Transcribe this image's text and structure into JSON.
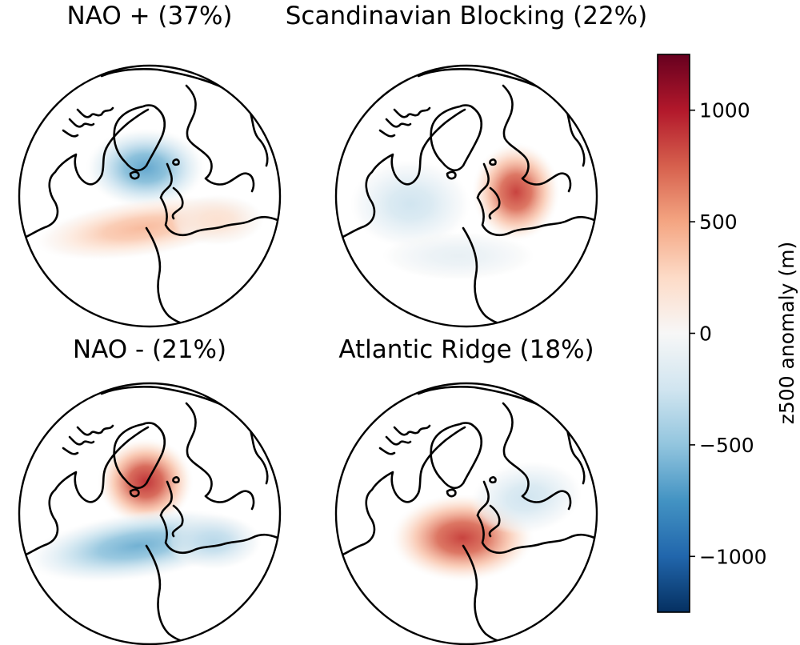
{
  "chart_data": {
    "type": "heatmap",
    "projection": "orthographic, North Atlantic / Arctic view",
    "variable": "z500 anomaly",
    "units": "m",
    "panels": [
      {
        "title": "NAO + (37%)",
        "regime": "NAO +",
        "frequency_pct": 37,
        "anomaly_centers": [
          {
            "region": "Greenland / Iceland",
            "sign": "negative",
            "approx_value": -650
          },
          {
            "region": "Central North Atlantic (Azores)",
            "sign": "positive",
            "approx_value": 400
          },
          {
            "region": "Western Europe",
            "sign": "positive",
            "approx_value": 200
          }
        ]
      },
      {
        "title": "Scandinavian Blocking (22%)",
        "regime": "Scandinavian Blocking",
        "frequency_pct": 22,
        "anomaly_centers": [
          {
            "region": "Scandinavia",
            "sign": "positive",
            "approx_value": 850
          },
          {
            "region": "Western North Atlantic",
            "sign": "negative",
            "approx_value": -250
          },
          {
            "region": "Subtropical Atlantic",
            "sign": "negative",
            "approx_value": -100
          }
        ]
      },
      {
        "title": "NAO - (21%)",
        "regime": "NAO -",
        "frequency_pct": 21,
        "anomaly_centers": [
          {
            "region": "Greenland",
            "sign": "positive",
            "approx_value": 900
          },
          {
            "region": "Mid-latitude North Atlantic",
            "sign": "negative",
            "approx_value": -600
          },
          {
            "region": "Western Europe",
            "sign": "negative",
            "approx_value": -350
          }
        ]
      },
      {
        "title": "Atlantic Ridge (18%)",
        "regime": "Atlantic Ridge",
        "frequency_pct": 18,
        "anomaly_centers": [
          {
            "region": "Central North Atlantic",
            "sign": "positive",
            "approx_value": 850
          },
          {
            "region": "Scandinavia / Northern Europe",
            "sign": "negative",
            "approx_value": -250
          }
        ]
      }
    ],
    "colorbar": {
      "label": "z500 anomaly (m)",
      "range": [
        -1250,
        1250
      ],
      "ticks": [
        1000,
        500,
        0,
        -500,
        -1000
      ],
      "tick_labels": [
        "1000",
        "500",
        "0",
        "−500",
        "−1000"
      ],
      "colormap": "RdBu_r",
      "color_stops": [
        "#053061",
        "#2166ac",
        "#4393c3",
        "#92c5de",
        "#d1e5f0",
        "#f7f7f7",
        "#fddbc7",
        "#f4a582",
        "#d6604d",
        "#b2182b",
        "#67001f"
      ]
    }
  }
}
